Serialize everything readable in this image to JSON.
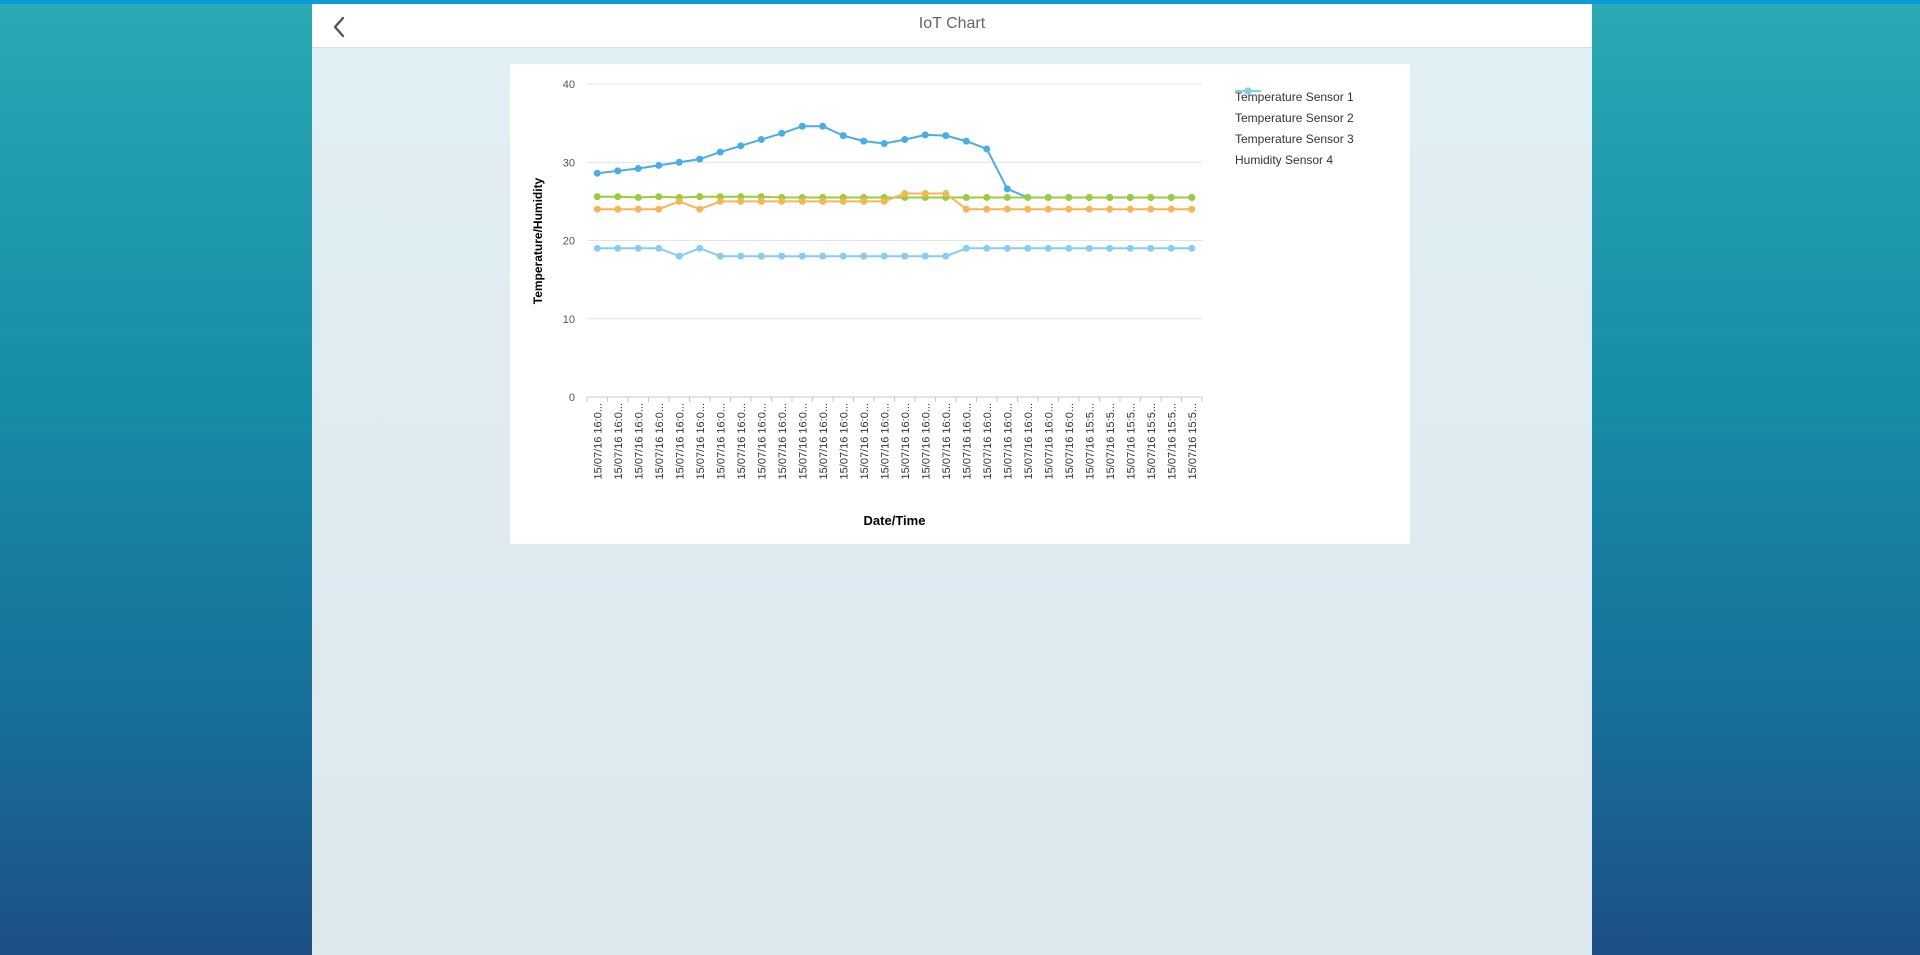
{
  "header": {
    "title": "IoT Chart",
    "back_icon": "chevron-left-icon"
  },
  "chart_data": {
    "type": "line",
    "ylabel": "Temperature/Humidity",
    "xlabel": "Date/Time",
    "ylim": [
      0,
      40
    ],
    "yticks": [
      0,
      10,
      20,
      30,
      40
    ],
    "grid": true,
    "legend_position": "right",
    "categories": [
      "15/07/16 16:0...",
      "15/07/16 16:0...",
      "15/07/16 16:0...",
      "15/07/16 16:0...",
      "15/07/16 16:0...",
      "15/07/16 16:0...",
      "15/07/16 16:0...",
      "15/07/16 16:0...",
      "15/07/16 16:0...",
      "15/07/16 16:0...",
      "15/07/16 16:0...",
      "15/07/16 16:0...",
      "15/07/16 16:0...",
      "15/07/16 16:0...",
      "15/07/16 16:0...",
      "15/07/16 16:0...",
      "15/07/16 16:0...",
      "15/07/16 16:0...",
      "15/07/16 16:0...",
      "15/07/16 16:0...",
      "15/07/16 16:0...",
      "15/07/16 16:0...",
      "15/07/16 16:0...",
      "15/07/16 16:0...",
      "15/07/16 15:5...",
      "15/07/16 15:5...",
      "15/07/16 15:5...",
      "15/07/16 15:5...",
      "15/07/16 15:5...",
      "15/07/16 15:5..."
    ],
    "series": [
      {
        "name": "Temperature Sensor 1",
        "color": "#4aaee3",
        "values": [
          28.6,
          28.9,
          29.2,
          29.6,
          30.0,
          30.4,
          31.3,
          32.1,
          32.9,
          33.7,
          34.6,
          34.6,
          33.4,
          32.7,
          32.4,
          32.9,
          33.5,
          33.4,
          32.7,
          31.7,
          26.6,
          25.5,
          25.5,
          25.5,
          25.5,
          25.5,
          25.5,
          25.5,
          25.5,
          25.5
        ]
      },
      {
        "name": "Temperature Sensor 2",
        "color": "#9acc3c",
        "values": [
          25.6,
          25.6,
          25.5,
          25.6,
          25.5,
          25.6,
          25.6,
          25.6,
          25.6,
          25.5,
          25.5,
          25.5,
          25.5,
          25.5,
          25.5,
          25.5,
          25.5,
          25.5,
          25.5,
          25.5,
          25.5,
          25.5,
          25.5,
          25.5,
          25.5,
          25.5,
          25.5,
          25.5,
          25.5,
          25.5
        ]
      },
      {
        "name": "Temperature Sensor 3",
        "color": "#f6b655",
        "values": [
          24.0,
          24.0,
          24.0,
          24.0,
          25.0,
          24.0,
          25.0,
          25.0,
          25.0,
          25.0,
          25.0,
          25.0,
          25.0,
          25.0,
          25.0,
          26.0,
          26.0,
          26.0,
          24.0,
          24.0,
          24.0,
          24.0,
          24.0,
          24.0,
          24.0,
          24.0,
          24.0,
          24.0,
          24.0,
          24.0
        ]
      },
      {
        "name": "Humidity Sensor 4",
        "color": "#86cdf0",
        "values": [
          19,
          19,
          19,
          19,
          18,
          19,
          18,
          18,
          18,
          18,
          18,
          18,
          18,
          18,
          18,
          18,
          18,
          18,
          19,
          19,
          19,
          19,
          19,
          19,
          19,
          19,
          19,
          19,
          19,
          19
        ]
      }
    ]
  }
}
